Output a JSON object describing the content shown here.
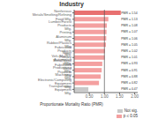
{
  "chart_data": {
    "type": "bar",
    "orientation": "horizontal",
    "title": "Industry",
    "xlabel": "Proportionate Mortality Ratio (PMR)",
    "categories": [
      "Transportation Equipment Mfg.",
      "Electronic/Computing Equipment Mfg.",
      "Machinery Mfg.",
      "Fabricated Metal Products Mfg.",
      "Primary Metal/Metal Basic Productions Mfg.",
      "Motor Veh./Mach. - Automotive Mfg.",
      "Fabricated Products Mfg.",
      "Rubber/Plastics Mfg.",
      "Aluminum Mfg.",
      "Printing",
      "Lumber/Forest Products Mfg.",
      "Food Mfg.",
      "Nonferrous Metals/Smelting/Refining"
    ],
    "values": [
      0.47,
      0.82,
      0.88,
      0.91,
      0.93,
      1.01,
      1.02,
      1.05,
      1.06,
      1.07,
      1.08,
      1.13,
      1.54
    ],
    "value_labels": [
      "PMR = 0.47",
      "PMR = 0.82",
      "PMR = 0.88",
      "PMR = 0.91",
      "PMR = 0.93",
      "PMR = 1.01",
      "PMR = 1.02",
      "PMR = 1.05",
      "PMR = 1.06",
      "PMR = 1.07",
      "PMR = 1.08",
      "PMR = 1.13",
      "PMR = 1.54"
    ],
    "data_labels": true,
    "colors": [
      "#c8c8c8",
      "#f4a0a0",
      "#f4a0a0",
      "#f4a0a0",
      "#f4a0a0",
      "#f4a0a0",
      "#f4a0a0",
      "#f4a0a0",
      "#f4a0a0",
      "#f4a0a0",
      "#f4a0a0",
      "#f4a0a0",
      "#e87070"
    ],
    "xlim": [
      0,
      2.1
    ],
    "xticks": [
      {
        "value": 0.5,
        "label": "0.50"
      },
      {
        "value": 1.0,
        "label": "1.00"
      },
      {
        "value": 1.5,
        "label": "1.50"
      },
      {
        "value": 2.0,
        "label": "2.00"
      }
    ],
    "reference_line": 1.0,
    "grid": false,
    "legend": "lower right",
    "legend_entries": [
      {
        "name": "Not sig.",
        "color": "#c8c8c8"
      },
      {
        "name": "p ≤ 0.05",
        "color": "#f4a0a0"
      }
    ]
  }
}
